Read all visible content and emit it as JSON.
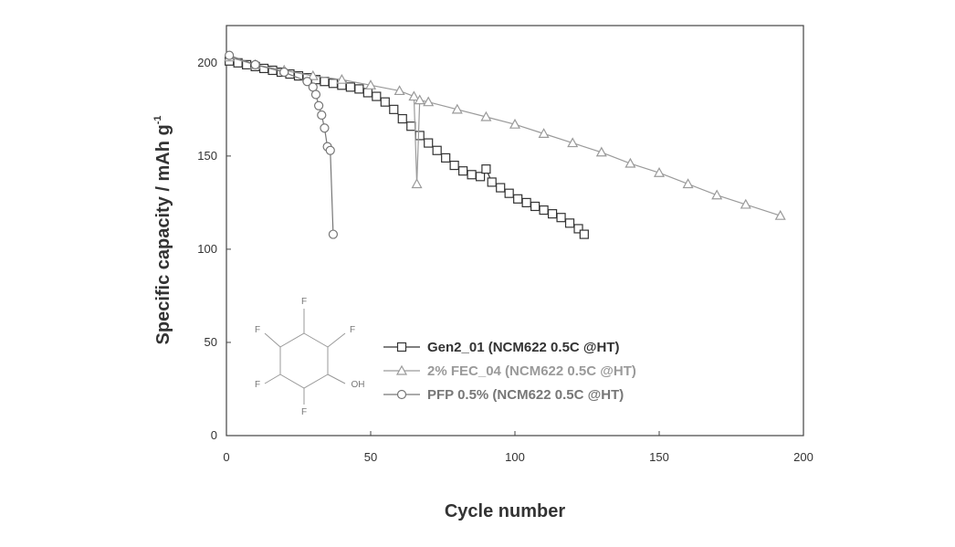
{
  "chart_data": {
    "type": "line",
    "xlabel": "Cycle number",
    "ylabel": "Specific capacity / mAh g",
    "ylabel_superscript": "-1",
    "xlim": [
      0,
      200
    ],
    "ylim": [
      0,
      220
    ],
    "xticks": [
      0,
      50,
      100,
      150,
      200
    ],
    "yticks": [
      0,
      50,
      100,
      150,
      200
    ],
    "legend": "lower center",
    "series": [
      {
        "name": "Gen2_01 (NCM622 0.5C @HT)",
        "color": "#333333",
        "marker": "square",
        "x": [
          1,
          4,
          7,
          10,
          13,
          16,
          19,
          22,
          25,
          28,
          31,
          34,
          37,
          40,
          43,
          46,
          49,
          52,
          55,
          58,
          61,
          64,
          67,
          70,
          73,
          76,
          79,
          82,
          85,
          88,
          90,
          92,
          95,
          98,
          101,
          104,
          107,
          110,
          113,
          116,
          119,
          122,
          124
        ],
        "values": [
          201,
          200,
          199,
          198,
          197,
          196,
          195,
          194,
          193,
          192,
          191,
          190,
          189,
          188,
          187,
          186,
          184,
          182,
          179,
          175,
          170,
          166,
          161,
          157,
          153,
          149,
          145,
          142,
          140,
          139,
          143,
          136,
          133,
          130,
          127,
          125,
          123,
          121,
          119,
          117,
          114,
          111,
          108
        ]
      },
      {
        "name": "2% FEC_04 (NCM622 0.5C @HT)",
        "color": "#9a9a9a",
        "marker": "triangle",
        "x": [
          1,
          10,
          20,
          30,
          40,
          50,
          60,
          65,
          66,
          67,
          70,
          80,
          90,
          100,
          110,
          120,
          130,
          140,
          150,
          160,
          170,
          180,
          192
        ],
        "values": [
          203,
          199,
          196,
          193,
          191,
          188,
          185,
          182,
          135,
          180,
          179,
          175,
          171,
          167,
          162,
          157,
          152,
          146,
          141,
          135,
          129,
          124,
          118
        ]
      },
      {
        "name": "PFP 0.5% (NCM622 0.5C @HT)",
        "color": "#777777",
        "marker": "circle",
        "x": [
          1,
          10,
          20,
          28,
          30,
          31,
          32,
          33,
          34,
          35,
          36,
          37
        ],
        "values": [
          204,
          199,
          195,
          190,
          187,
          183,
          177,
          172,
          165,
          155,
          153,
          108
        ]
      }
    ],
    "structure_labels": [
      "F",
      "F",
      "F",
      "F",
      "F",
      "OH"
    ]
  }
}
